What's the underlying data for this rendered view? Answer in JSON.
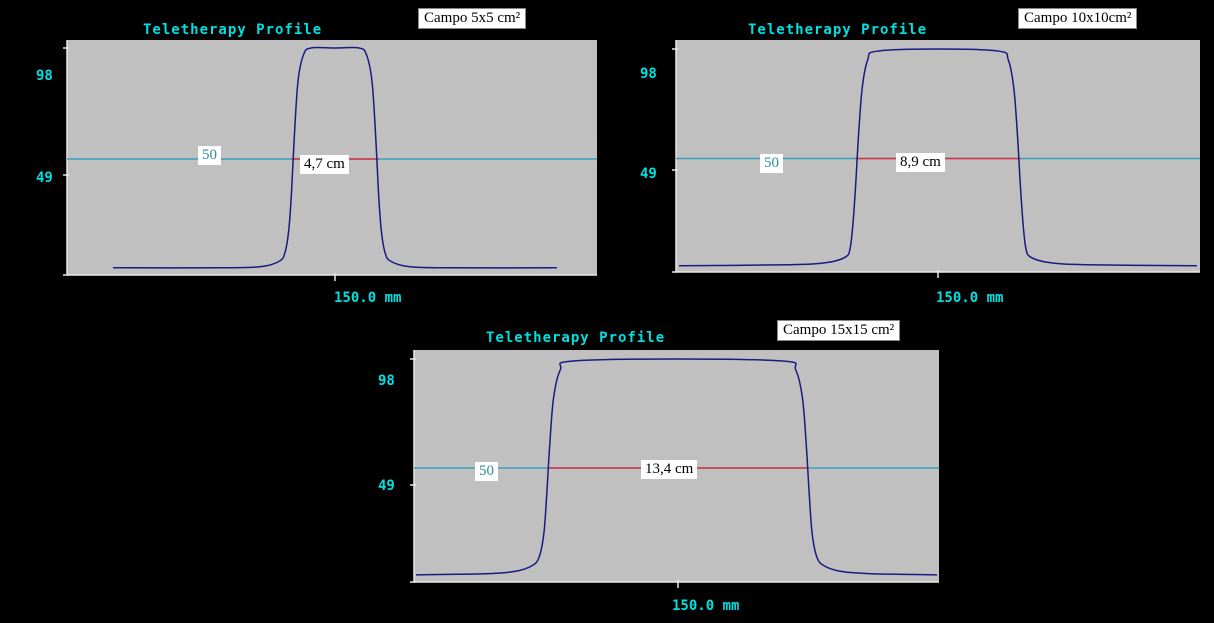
{
  "colors": {
    "background": "#000000",
    "plot_bg": "#c0c0c0",
    "axis_text": "#00e0e0",
    "profile": "#1a1a80",
    "level_line": "#3aa0c0",
    "width_line": "#e03040"
  },
  "chart_data": [
    {
      "type": "line",
      "title": "Teletherapy Profile",
      "caption": "Campo 5x5 cm²",
      "xlabel": "150.0 mm",
      "yticks": [
        "98",
        "49"
      ],
      "level_label": "50",
      "width_label": "4,7 cm",
      "level": 50,
      "field_width_cm": 4.7,
      "x": [
        -12,
        -6,
        -4,
        -3,
        -2.7,
        -2.5,
        -2.35,
        -2.2,
        -2.0,
        -1.7,
        -1.3,
        0,
        1.3,
        1.7,
        2.0,
        2.2,
        2.35,
        2.5,
        2.7,
        3,
        4,
        6,
        12
      ],
      "y": [
        1,
        1,
        1.5,
        4,
        8,
        18,
        35,
        60,
        85,
        97,
        100,
        100,
        100,
        97,
        85,
        60,
        35,
        18,
        8,
        4,
        1.5,
        1,
        1
      ]
    },
    {
      "type": "line",
      "title": "Teletherapy Profile",
      "caption": "Campo 10x10cm²",
      "xlabel": "150.0 mm",
      "yticks": [
        "98",
        "49"
      ],
      "level_label": "50",
      "width_label": "8,9 cm",
      "level": 50,
      "field_width_cm": 8.9,
      "x": [
        -14,
        -8,
        -6,
        -5,
        -4.75,
        -4.6,
        -4.45,
        -4.3,
        -4.1,
        -3.8,
        -3.3,
        0,
        3.3,
        3.8,
        4.1,
        4.3,
        4.45,
        4.6,
        4.75,
        5,
        6,
        8,
        14
      ],
      "y": [
        1,
        1.5,
        2.5,
        5,
        9,
        20,
        38,
        60,
        82,
        95,
        99,
        100,
        99,
        95,
        82,
        60,
        38,
        20,
        9,
        5,
        2.5,
        1.5,
        1
      ]
    },
    {
      "type": "line",
      "title": "Teletherapy Profile",
      "caption": "Campo 15x15 cm²",
      "xlabel": "150.0 mm",
      "yticks": [
        "98",
        "49"
      ],
      "level_label": "50",
      "width_label": "13,4 cm",
      "level": 50,
      "field_width_cm": 13.4,
      "x": [
        -14,
        -10,
        -8.5,
        -7.6,
        -7.2,
        -6.95,
        -6.8,
        -6.65,
        -6.45,
        -6.1,
        -5.5,
        0,
        5.5,
        6.1,
        6.45,
        6.65,
        6.8,
        6.95,
        7.2,
        7.6,
        8.5,
        10,
        14
      ],
      "y": [
        1,
        1.5,
        2.5,
        5,
        9,
        20,
        38,
        60,
        82,
        95,
        99,
        100,
        99,
        95,
        82,
        60,
        38,
        20,
        9,
        5,
        2.5,
        1.5,
        1
      ]
    }
  ]
}
